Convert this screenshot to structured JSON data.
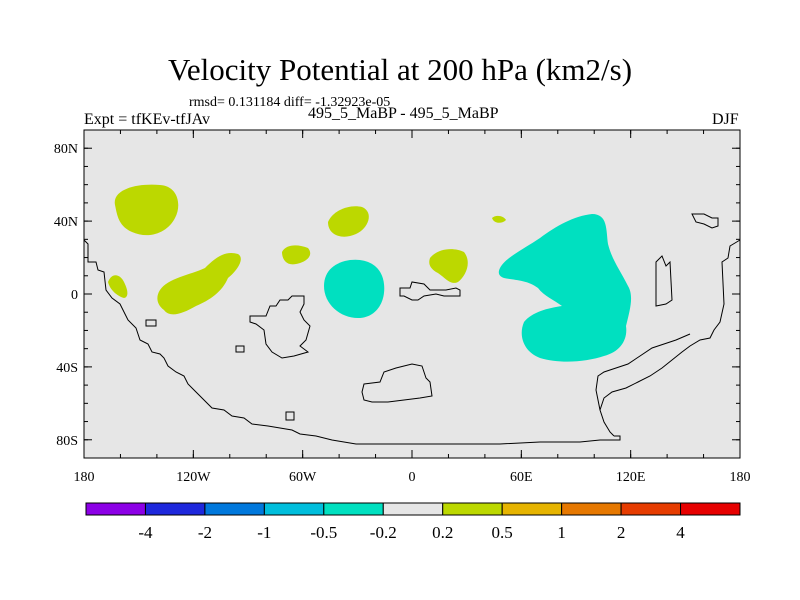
{
  "title": "Velocity Potential at 200 hPa (km2/s)",
  "stats": "rmsd= 0.131184  diff= -1.32923e-05",
  "left_label": "Expt = tfKEv-tfJAv",
  "subtitle": "495_5_MaBP - 495_5_MaBP",
  "season": "DJF",
  "colors": {
    "background_fill": "#e6e6e6",
    "positive_light": "#bcd800",
    "negative_light": "#00e0c0",
    "coastline": "#000000"
  },
  "map": {
    "projection": "cylindrical-equidistant",
    "lon_range": [
      -180,
      180
    ],
    "lat_range": [
      -90,
      90
    ],
    "lon_ticks": [
      {
        "value": -180,
        "label": "180"
      },
      {
        "value": -120,
        "label": "120W"
      },
      {
        "value": -60,
        "label": "60W"
      },
      {
        "value": 0,
        "label": "0"
      },
      {
        "value": 60,
        "label": "60E"
      },
      {
        "value": 120,
        "label": "120E"
      },
      {
        "value": 180,
        "label": "180"
      }
    ],
    "lat_ticks": [
      {
        "value": 80,
        "label": "80N"
      },
      {
        "value": 40,
        "label": "40N"
      },
      {
        "value": 0,
        "label": "0"
      },
      {
        "value": -40,
        "label": "40S"
      },
      {
        "value": -80,
        "label": "80S"
      }
    ]
  },
  "colorbar": {
    "colors": [
      "#8c00e6",
      "#1e28dc",
      "#0078dc",
      "#00bedc",
      "#00e0c0",
      "#e6e6e6",
      "#bcd800",
      "#e6b400",
      "#e67800",
      "#e63c00",
      "#e60000"
    ],
    "labels": [
      "-4",
      "-2",
      "-1",
      "-0.5",
      "-0.2",
      "0.2",
      "0.5",
      "1",
      "2",
      "4"
    ]
  }
}
